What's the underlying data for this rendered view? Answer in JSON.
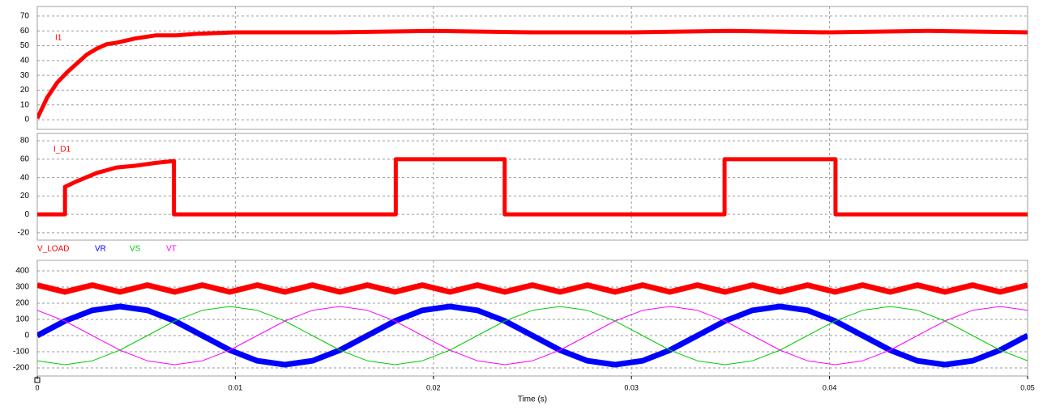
{
  "chart_data": [
    {
      "type": "line",
      "x": [
        0,
        0.0005,
        0.001,
        0.0015,
        0.002,
        0.0025,
        0.003,
        0.0035,
        0.004,
        0.005,
        0.006,
        0.007,
        0.008,
        0.01,
        0.015,
        0.02,
        0.025,
        0.03,
        0.035,
        0.04,
        0.045,
        0.05
      ],
      "series": [
        {
          "name": "I1",
          "color": "#ff0000",
          "linewidth": 5,
          "values": [
            1,
            15,
            25,
            32,
            38,
            44,
            48,
            51,
            52,
            55,
            57,
            57,
            58,
            59,
            59,
            60,
            59,
            59,
            60,
            59,
            60,
            59
          ]
        }
      ],
      "xlim": [
        0,
        0.05
      ],
      "ylim": [
        -6.5,
        76.5
      ],
      "yticks": [
        0,
        10,
        20,
        30,
        40,
        50,
        60,
        70
      ],
      "grid": true
    },
    {
      "type": "line",
      "x": [
        0,
        0.0014,
        0.0014,
        0.002,
        0.003,
        0.004,
        0.005,
        0.006,
        0.0069,
        0.0069,
        0.0181,
        0.0181,
        0.0236,
        0.0236,
        0.0347,
        0.0347,
        0.0403,
        0.0403,
        0.05
      ],
      "series": [
        {
          "name": "I_D1",
          "color": "#ff0000",
          "linewidth": 5,
          "values": [
            0,
            0,
            30,
            36,
            45,
            51,
            53,
            56,
            58,
            0,
            0,
            60,
            60,
            0,
            0,
            60,
            60,
            0,
            0
          ]
        }
      ],
      "xlim": [
        0,
        0.05
      ],
      "ylim": [
        -28,
        88
      ],
      "yticks": [
        -20,
        0,
        20,
        40,
        60,
        80
      ],
      "grid": true
    },
    {
      "type": "line",
      "x_label": "Time (s)",
      "x": [
        0,
        0.00139,
        0.00278,
        0.00417,
        0.00556,
        0.00694,
        0.00833,
        0.00972,
        0.01111,
        0.0125,
        0.01389,
        0.01528,
        0.01667,
        0.01806,
        0.01944,
        0.02083,
        0.02222,
        0.02361,
        0.025,
        0.02639,
        0.02778,
        0.02917,
        0.03056,
        0.03194,
        0.03333,
        0.03472,
        0.03611,
        0.0375,
        0.03889,
        0.04028,
        0.04167,
        0.04306,
        0.04444,
        0.04583,
        0.04722,
        0.04861,
        0.05
      ],
      "series": [
        {
          "name": "V_LOAD",
          "color": "#ff0000",
          "linewidth": 7,
          "values": [
            312,
            270,
            312,
            270,
            312,
            270,
            312,
            270,
            312,
            270,
            312,
            270,
            312,
            270,
            312,
            270,
            312,
            270,
            312,
            270,
            312,
            270,
            312,
            270,
            312,
            270,
            312,
            270,
            312,
            270,
            312,
            270,
            312,
            270,
            312,
            270,
            312
          ]
        },
        {
          "name": "VR",
          "color": "#0000ff",
          "linewidth": 7,
          "values": [
            0,
            90,
            156,
            180,
            156,
            90,
            0,
            -90,
            -156,
            -180,
            -156,
            -90,
            0,
            90,
            156,
            180,
            156,
            90,
            0,
            -90,
            -156,
            -180,
            -156,
            -90,
            0,
            90,
            156,
            180,
            156,
            90,
            0,
            -90,
            -156,
            -180,
            -156,
            -90,
            0
          ]
        },
        {
          "name": "VS",
          "color": "#00cc00",
          "linewidth": 1,
          "values": [
            -156,
            -180,
            -156,
            -90,
            0,
            90,
            156,
            180,
            156,
            90,
            0,
            -90,
            -156,
            -180,
            -156,
            -90,
            0,
            90,
            156,
            180,
            156,
            90,
            0,
            -90,
            -156,
            -180,
            -156,
            -90,
            0,
            90,
            156,
            180,
            156,
            90,
            0,
            -90,
            -156
          ]
        },
        {
          "name": "VT",
          "color": "#ff00ff",
          "linewidth": 1,
          "values": [
            156,
            90,
            0,
            -90,
            -156,
            -180,
            -156,
            -90,
            0,
            90,
            156,
            180,
            156,
            90,
            0,
            -90,
            -156,
            -180,
            -156,
            -90,
            0,
            90,
            156,
            180,
            156,
            90,
            0,
            -90,
            -156,
            -180,
            -156,
            -90,
            0,
            90,
            156,
            180,
            156
          ]
        }
      ],
      "xlim": [
        0,
        0.05
      ],
      "xticks": [
        0,
        0.01,
        0.02,
        0.03,
        0.04,
        0.05
      ],
      "ylim": [
        -250,
        465
      ],
      "yticks": [
        -200,
        -100,
        0,
        100,
        200,
        300,
        400
      ],
      "grid": true
    }
  ]
}
